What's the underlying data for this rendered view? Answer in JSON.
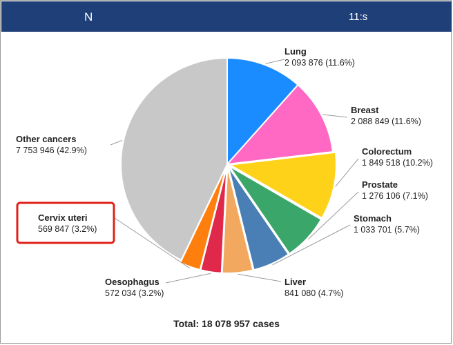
{
  "header": {
    "left_text": "N",
    "right_text": "11:s"
  },
  "chart_data": {
    "type": "pie",
    "title": "",
    "total_label": "Total: 18 078 957 cases",
    "highlight": "Cervix uteri",
    "legend": "none",
    "slices": [
      {
        "name": "Lung",
        "value": 2093876,
        "label": "2 093 876 (11.6%)",
        "color": "#1a8cff"
      },
      {
        "name": "Breast",
        "value": 2088849,
        "label": "2 088 849 (11.6%)",
        "color": "#ff69c4"
      },
      {
        "name": "Colorectum",
        "value": 1849518,
        "label": "1 849 518 (10.2%)",
        "color": "#ffd21a"
      },
      {
        "name": "Prostate",
        "value": 1276106,
        "label": "1 276 106 (7.1%)",
        "color": "#3aa66a"
      },
      {
        "name": "Stomach",
        "value": 1033701,
        "label": "1 033 701 (5.7%)",
        "color": "#4a7fb5"
      },
      {
        "name": "Liver",
        "value": 841080,
        "label": "841 080 (4.7%)",
        "color": "#f2a85e"
      },
      {
        "name": "Oesophagus",
        "value": 572034,
        "label": "572 034 (3.2%)",
        "color": "#e0284a"
      },
      {
        "name": "Cervix uteri",
        "value": 569847,
        "label": "569 847 (3.2%)",
        "color": "#ff7f0e"
      },
      {
        "name": "Other cancers",
        "value": 7753946,
        "label": "7 753 946 (42.9%)",
        "color": "#c8c8c8"
      }
    ]
  }
}
